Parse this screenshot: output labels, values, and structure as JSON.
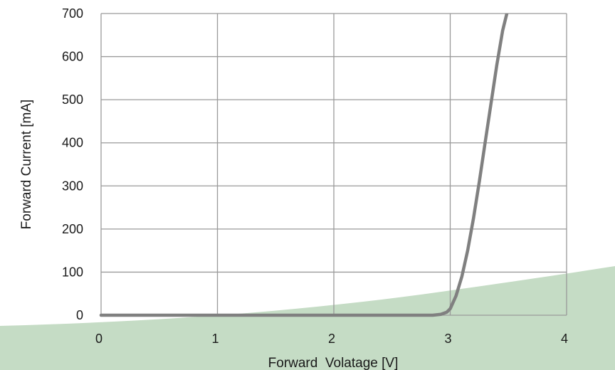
{
  "chart_data": {
    "type": "line",
    "title": "",
    "xlabel": "Forward  Volatage [V]",
    "ylabel": "Forward Current [mA]",
    "xlim": [
      0,
      4
    ],
    "ylim": [
      0,
      700
    ],
    "x_ticks": [
      "0",
      "1",
      "2",
      "3",
      "4"
    ],
    "y_ticks": [
      "0",
      "100",
      "200",
      "300",
      "400",
      "500",
      "600",
      "700"
    ],
    "grid": true,
    "legend": "none",
    "series": [
      {
        "x": [
          0,
          1,
          2,
          2.7,
          2.85,
          2.92,
          2.97,
          3.0,
          3.05,
          3.1,
          3.15,
          3.2,
          3.25,
          3.3,
          3.35,
          3.4,
          3.45,
          3.5,
          3.53
        ],
        "y": [
          0,
          0,
          0,
          0,
          0,
          2,
          7,
          15,
          45,
          90,
          150,
          225,
          310,
          400,
          490,
          580,
          660,
          715,
          740
        ],
        "color": "#808080"
      }
    ]
  },
  "colors": {
    "curve": "#808080",
    "grid": "#9a9a9a",
    "background_wave": "#c5dcc5"
  }
}
